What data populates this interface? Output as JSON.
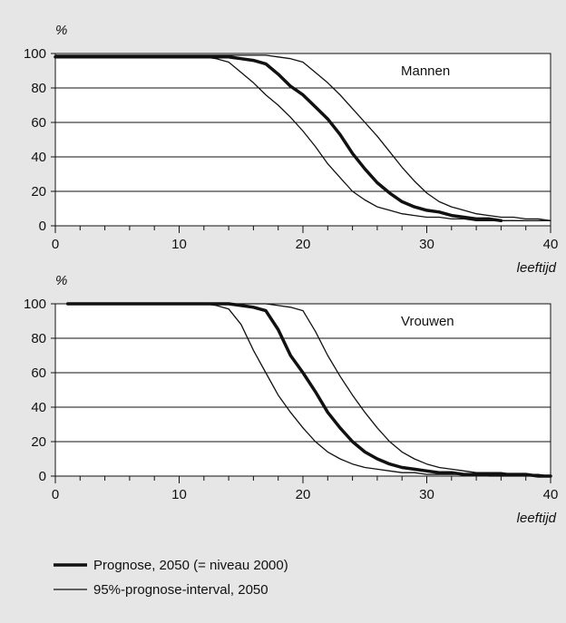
{
  "chart_data": [
    {
      "type": "line",
      "title": "Mannen",
      "ylabel": "%",
      "xlabel": "leeftijd",
      "xlim": [
        0,
        40
      ],
      "ylim": [
        0,
        100
      ],
      "xticks": [
        0,
        10,
        20,
        30,
        40
      ],
      "yticks": [
        0,
        20,
        40,
        60,
        80,
        100
      ],
      "grid": true,
      "series": [
        {
          "name": "Prognose, 2050 (= niveau 2000)",
          "x": [
            0,
            10,
            12,
            13,
            14,
            15,
            16,
            17,
            18,
            19,
            20,
            21,
            22,
            23,
            24,
            25,
            26,
            27,
            28,
            29,
            30,
            31,
            32,
            33,
            34,
            35,
            36
          ],
          "y": [
            98,
            98,
            98,
            98,
            98,
            97,
            96,
            94,
            88,
            81,
            76,
            69,
            62,
            53,
            42,
            33,
            25,
            19,
            14,
            11,
            9,
            8,
            6,
            5,
            4,
            4,
            3
          ]
        },
        {
          "name": "95%-prognose-interval, 2050",
          "x": [
            0,
            10,
            12,
            13,
            14,
            15,
            16,
            17,
            18,
            19,
            20,
            21,
            22,
            23,
            24,
            25,
            26,
            27,
            28,
            29,
            30,
            31,
            32,
            33,
            34,
            35,
            36,
            37,
            38,
            39,
            40
          ],
          "y": [
            99,
            99,
            99,
            99,
            99,
            99,
            99,
            99,
            98,
            97,
            95,
            89,
            83,
            76,
            68,
            60,
            52,
            43,
            34,
            26,
            19,
            14,
            11,
            9,
            7,
            6,
            5,
            5,
            4,
            4,
            3
          ]
        },
        {
          "name": "95%-prognose-interval, 2050",
          "x": [
            0,
            10,
            12,
            13,
            14,
            15,
            16,
            17,
            18,
            19,
            20,
            21,
            22,
            23,
            24,
            25,
            26,
            27,
            28,
            29,
            30,
            31,
            32,
            33,
            34,
            35,
            36,
            37,
            38,
            39,
            40
          ],
          "y": [
            98,
            98,
            98,
            97,
            95,
            89,
            83,
            76,
            70,
            63,
            55,
            46,
            36,
            28,
            20,
            15,
            11,
            9,
            7,
            6,
            5,
            5,
            4,
            4,
            3,
            3,
            3,
            3,
            3,
            3,
            3
          ]
        }
      ]
    },
    {
      "type": "line",
      "title": "Vrouwen",
      "ylabel": "%",
      "xlabel": "leeftijd",
      "xlim": [
        0,
        40
      ],
      "ylim": [
        0,
        100
      ],
      "xticks": [
        0,
        10,
        20,
        30,
        40
      ],
      "yticks": [
        0,
        20,
        40,
        60,
        80,
        100
      ],
      "grid": true,
      "series": [
        {
          "name": "Prognose, 2050 (= niveau 2000)",
          "x": [
            1,
            10,
            12,
            13,
            14,
            15,
            16,
            17,
            18,
            19,
            20,
            21,
            22,
            23,
            24,
            25,
            26,
            27,
            28,
            29,
            30,
            31,
            32,
            33,
            34,
            35,
            36,
            37,
            38,
            39,
            40
          ],
          "y": [
            100,
            100,
            100,
            100,
            100,
            99,
            98,
            96,
            85,
            70,
            60,
            49,
            37,
            28,
            20,
            14,
            10,
            7,
            5,
            4,
            3,
            2,
            2,
            1,
            1,
            1,
            1,
            1,
            1,
            0,
            0
          ]
        },
        {
          "name": "95%-prognose-interval, 2050",
          "x": [
            1,
            10,
            12,
            13,
            14,
            15,
            16,
            17,
            18,
            19,
            20,
            21,
            22,
            23,
            24,
            25,
            26,
            27,
            28,
            29,
            30,
            31,
            32,
            33,
            34,
            35,
            36,
            37,
            38,
            39,
            40
          ],
          "y": [
            100,
            100,
            100,
            100,
            100,
            100,
            100,
            100,
            99,
            98,
            96,
            84,
            70,
            58,
            47,
            37,
            28,
            20,
            14,
            10,
            7,
            5,
            4,
            3,
            2,
            2,
            2,
            1,
            1,
            1,
            0
          ]
        },
        {
          "name": "95%-prognose-interval, 2050",
          "x": [
            1,
            10,
            12,
            13,
            14,
            15,
            16,
            17,
            18,
            19,
            20,
            21,
            22,
            23,
            24,
            25,
            26,
            27,
            28,
            29,
            30,
            31,
            32,
            33,
            34,
            35,
            36,
            37,
            38,
            39,
            40
          ],
          "y": [
            100,
            100,
            100,
            99,
            97,
            88,
            73,
            60,
            47,
            37,
            28,
            20,
            14,
            10,
            7,
            5,
            4,
            3,
            2,
            2,
            1,
            1,
            1,
            1,
            1,
            0,
            0,
            0,
            0,
            0,
            0
          ]
        }
      ]
    }
  ],
  "legend": {
    "items": [
      {
        "label": "Prognose, 2050 (= niveau 2000)",
        "style": "thick"
      },
      {
        "label": "95%-prognose-interval, 2050",
        "style": "thin"
      }
    ]
  },
  "colors": {
    "background": "#e6e6e6",
    "plot_background": "#ffffff",
    "line": "#111111",
    "grid": "#111111"
  }
}
